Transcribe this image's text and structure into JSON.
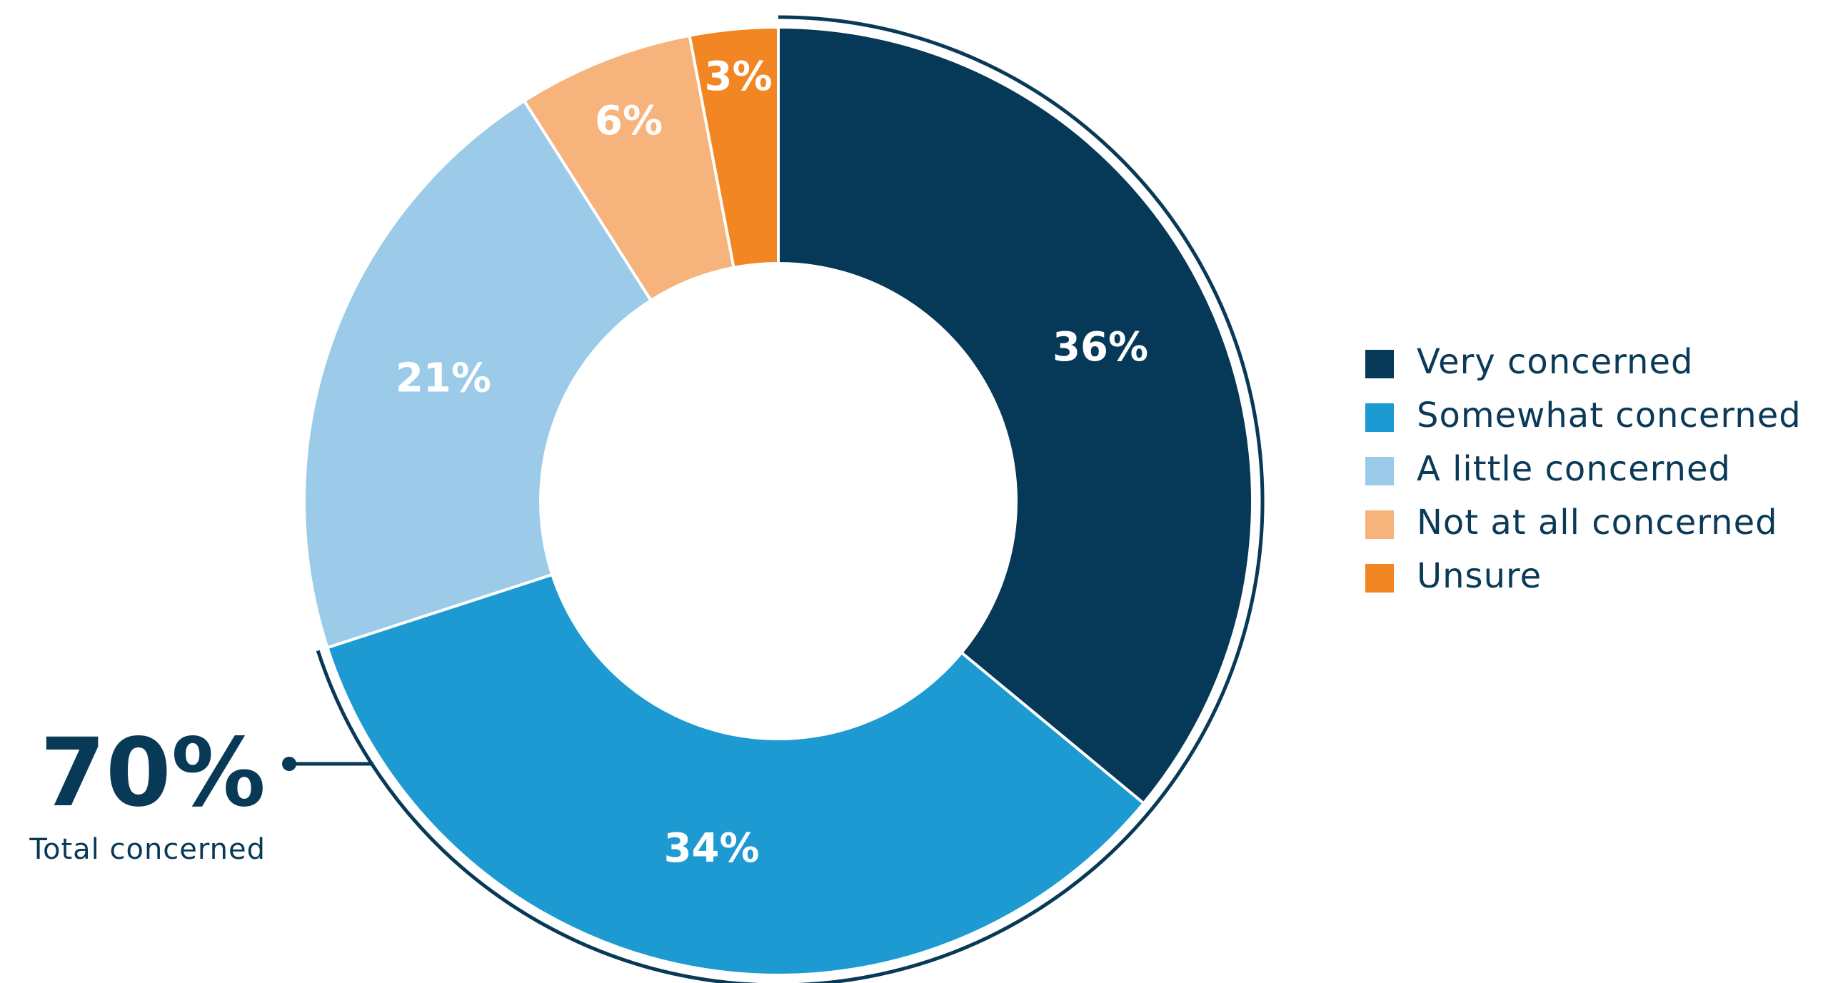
{
  "chart_data": {
    "type": "pie",
    "variant": "donut",
    "title": "",
    "legend_position": "right",
    "slices": [
      {
        "name": "Very concerned",
        "value": 36,
        "label": "36%",
        "color": "#063857"
      },
      {
        "name": "Somewhat concerned",
        "value": 34,
        "label": "34%",
        "color": "#1c9ad1"
      },
      {
        "name": "A little concerned",
        "value": 21,
        "label": "21%",
        "color": "#9bcbe8"
      },
      {
        "name": "Not at all concerned",
        "value": 6,
        "label": "6%",
        "color": "#f6b47c"
      },
      {
        "name": "Unsure",
        "value": 3,
        "label": "3%",
        "color": "#f28622"
      }
    ],
    "annotation": {
      "value": "70%",
      "label": "Total concerned",
      "spans": [
        "Very concerned",
        "Somewhat concerned"
      ],
      "color": "#083a57"
    }
  }
}
